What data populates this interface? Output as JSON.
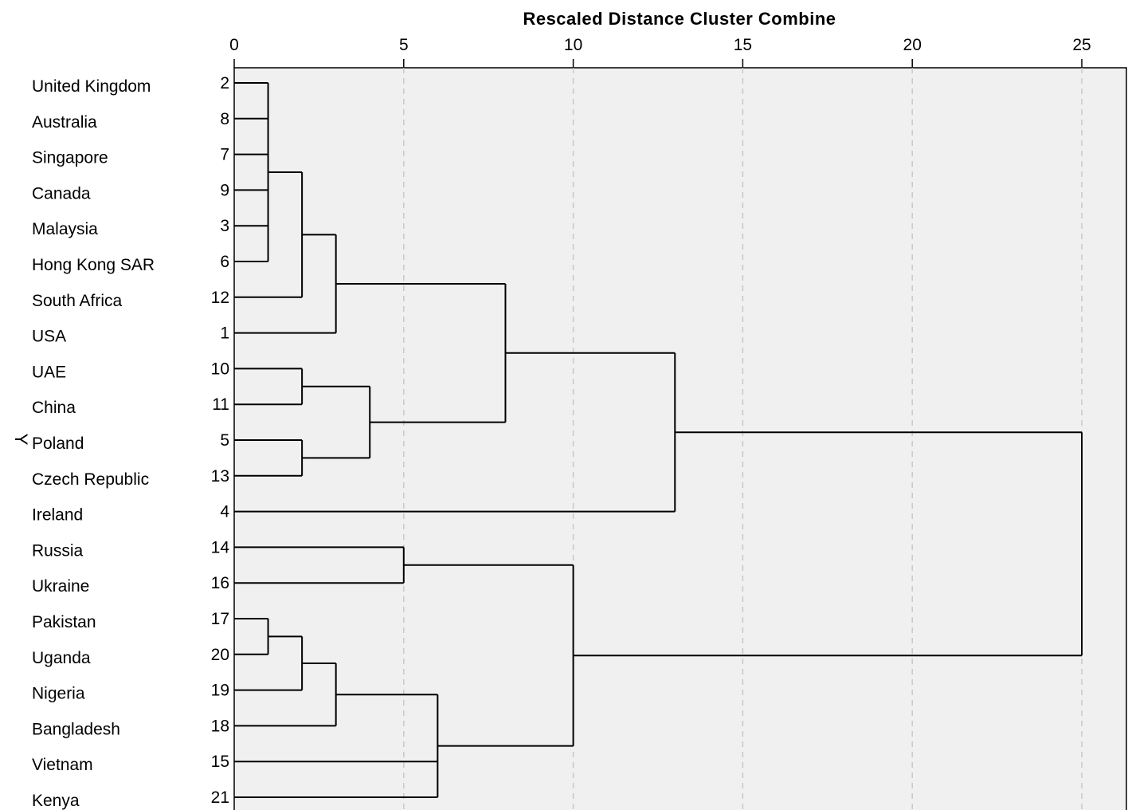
{
  "chart_data": {
    "type": "dendrogram",
    "title": "Rescaled Distance Cluster Combine",
    "ylabel": "Y",
    "xlim": [
      0,
      25
    ],
    "x_ticks": [
      "0",
      "5",
      "10",
      "15",
      "20",
      "25"
    ],
    "grid": "vertical dashed lines at each tick",
    "leaves": [
      {
        "name": "United Kingdom",
        "case": "2"
      },
      {
        "name": "Australia",
        "case": "8"
      },
      {
        "name": "Singapore",
        "case": "7"
      },
      {
        "name": "Canada",
        "case": "9"
      },
      {
        "name": "Malaysia",
        "case": "3"
      },
      {
        "name": "Hong Kong SAR",
        "case": "6"
      },
      {
        "name": "South Africa",
        "case": "12"
      },
      {
        "name": "USA",
        "case": "1"
      },
      {
        "name": "UAE",
        "case": "10"
      },
      {
        "name": "China",
        "case": "11"
      },
      {
        "name": "Poland",
        "case": "5"
      },
      {
        "name": "Czech Republic",
        "case": "13"
      },
      {
        "name": "Ireland",
        "case": "4"
      },
      {
        "name": "Russia",
        "case": "14"
      },
      {
        "name": "Ukraine",
        "case": "16"
      },
      {
        "name": "Pakistan",
        "case": "17"
      },
      {
        "name": "Uganda",
        "case": "20"
      },
      {
        "name": "Nigeria",
        "case": "19"
      },
      {
        "name": "Bangladesh",
        "case": "18"
      },
      {
        "name": "Vietnam",
        "case": "15"
      },
      {
        "name": "Kenya",
        "case": "21"
      }
    ],
    "merges": [
      {
        "id": "A",
        "children": [
          "L0",
          "L1",
          "L2",
          "L3",
          "L4",
          "L5"
        ],
        "distance": 1
      },
      {
        "id": "B",
        "children": [
          "A",
          "L6"
        ],
        "distance": 2
      },
      {
        "id": "C",
        "children": [
          "B",
          "L7"
        ],
        "distance": 3
      },
      {
        "id": "D",
        "children": [
          "L8",
          "L9"
        ],
        "distance": 2
      },
      {
        "id": "E",
        "children": [
          "L10",
          "L11"
        ],
        "distance": 2
      },
      {
        "id": "F",
        "children": [
          "D",
          "E"
        ],
        "distance": 4
      },
      {
        "id": "G",
        "children": [
          "C",
          "F"
        ],
        "distance": 8
      },
      {
        "id": "H",
        "children": [
          "G",
          "L12"
        ],
        "distance": 13
      },
      {
        "id": "I",
        "children": [
          "L13",
          "L14"
        ],
        "distance": 5
      },
      {
        "id": "J",
        "children": [
          "L15",
          "L16"
        ],
        "distance": 1
      },
      {
        "id": "K",
        "children": [
          "J",
          "L17"
        ],
        "distance": 2
      },
      {
        "id": "M",
        "children": [
          "K",
          "L18"
        ],
        "distance": 3
      },
      {
        "id": "N",
        "children": [
          "M",
          "L19",
          "L20"
        ],
        "distance": 6
      },
      {
        "id": "O",
        "children": [
          "I",
          "N"
        ],
        "distance": 10
      },
      {
        "id": "P",
        "children": [
          "H",
          "O"
        ],
        "distance": 25
      }
    ]
  },
  "colors": {
    "plot_background": "#f0f0f0",
    "line": "#000000",
    "grid": "#c8c8c8"
  }
}
